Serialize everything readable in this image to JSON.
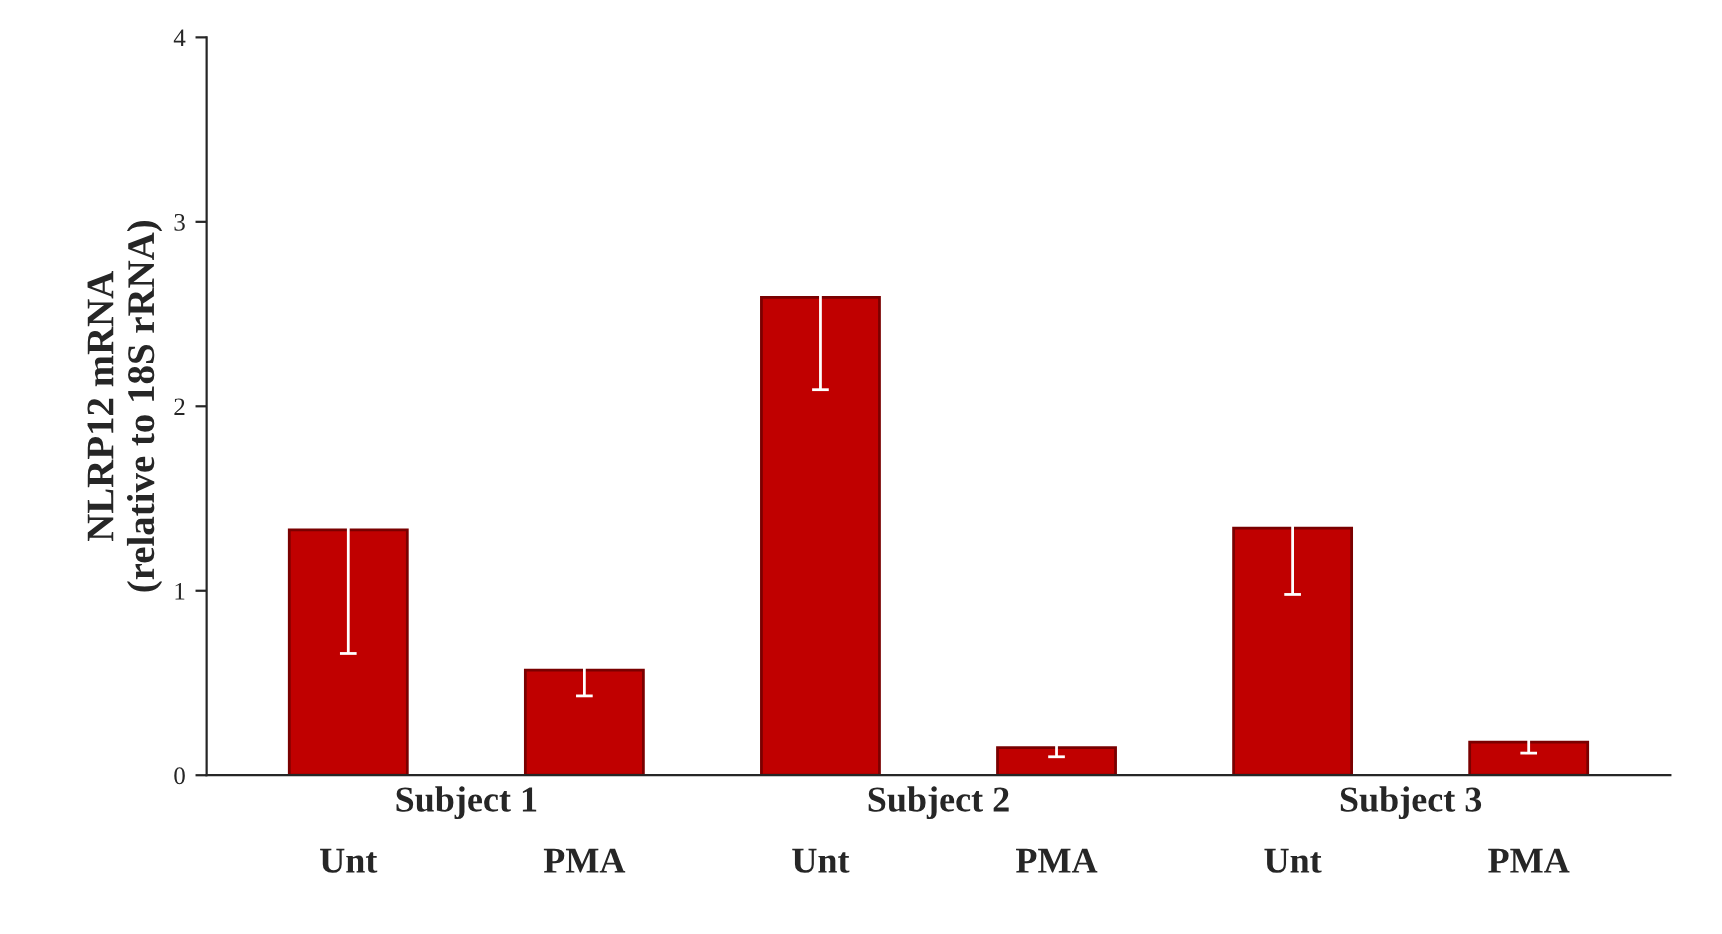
{
  "chart_data": {
    "type": "bar",
    "ylabel": "NLRP12 mRNA\n(relative to 18S rRNA)",
    "categories": [
      "Unt",
      "PMA",
      "Unt",
      "PMA",
      "Unt",
      "PMA"
    ],
    "values": [
      1.33,
      0.57,
      2.59,
      0.15,
      1.34,
      0.18
    ],
    "errors": [
      0.67,
      0.14,
      0.5,
      0.05,
      0.36,
      0.06
    ],
    "color": "#c00000",
    "ylim": [
      0,
      4
    ],
    "yticks": [
      0,
      1,
      2,
      3,
      4
    ],
    "annotations": [
      "Subject 1",
      "Subject 2",
      "Subject 3"
    ]
  }
}
